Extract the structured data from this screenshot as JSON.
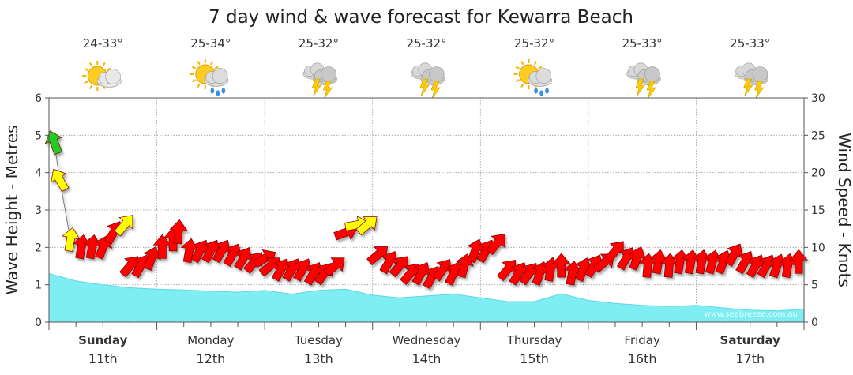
{
  "chart_data": {
    "type": "area",
    "title": "7 day wind & wave forecast for Kewarra Beach",
    "ylabel": "Wave Height - Metres",
    "y2label": "Wind Speed - Knots",
    "ylim": [
      0,
      6
    ],
    "y2lim": [
      0,
      30
    ],
    "yticks": [
      "0",
      "1",
      "2",
      "3",
      "4",
      "5",
      "6"
    ],
    "y2ticks": [
      "0",
      "5",
      "10",
      "15",
      "20",
      "25",
      "30"
    ],
    "grid": true,
    "watermark": "www.seabreeze.com.au",
    "colors": {
      "wave_fill": "#7eeef3",
      "wave_line": "#5fd6e4",
      "wind_strong": "#ff0000",
      "wind_medium": "#ffff00",
      "wind_light": "#22cc22",
      "grid": "#9a9a9a"
    },
    "days": [
      {
        "name": "Sunday",
        "date": "11th",
        "temps": "24-33°",
        "icon": "partly-cloudy-icon",
        "bold": true
      },
      {
        "name": "Monday",
        "date": "12th",
        "temps": "25-34°",
        "icon": "sun-cloud-rain-icon",
        "bold": false
      },
      {
        "name": "Tuesday",
        "date": "13th",
        "temps": "25-32°",
        "icon": "thunderstorm-icon",
        "bold": false
      },
      {
        "name": "Wednesday",
        "date": "14th",
        "temps": "25-32°",
        "icon": "thunderstorm-icon",
        "bold": false
      },
      {
        "name": "Thursday",
        "date": "15th",
        "temps": "25-32°",
        "icon": "sun-cloud-rain-icon",
        "bold": false
      },
      {
        "name": "Friday",
        "date": "16th",
        "temps": "25-33°",
        "icon": "thunderstorm-icon",
        "bold": false
      },
      {
        "name": "Saturday",
        "date": "17th",
        "temps": "25-33°",
        "icon": "thunderstorm-icon",
        "bold": true
      }
    ],
    "wave_height": {
      "x_days": [
        0,
        0.25,
        0.5,
        0.75,
        1,
        1.25,
        1.5,
        1.75,
        2,
        2.25,
        2.5,
        2.75,
        3,
        3.25,
        3.5,
        3.75,
        4,
        4.25,
        4.5,
        4.75,
        5,
        5.25,
        5.5,
        5.75,
        6,
        6.25,
        6.5,
        6.75,
        7
      ],
      "values": [
        1.3,
        1.1,
        1.0,
        0.92,
        0.88,
        0.86,
        0.83,
        0.8,
        0.85,
        0.75,
        0.85,
        0.88,
        0.72,
        0.65,
        0.7,
        0.75,
        0.65,
        0.55,
        0.55,
        0.76,
        0.58,
        0.5,
        0.45,
        0.42,
        0.45,
        0.38,
        0.32,
        0.3,
        0.35
      ]
    },
    "wind": {
      "x_days": [
        0.05,
        0.1,
        0.2,
        0.3,
        0.4,
        0.5,
        0.6,
        0.7,
        0.75,
        0.85,
        0.95,
        1.05,
        1.15,
        1.2,
        1.3,
        1.4,
        1.5,
        1.6,
        1.7,
        1.8,
        1.9,
        2.0,
        2.05,
        2.15,
        2.25,
        2.35,
        2.45,
        2.55,
        2.65,
        2.75,
        2.85,
        2.95,
        3.05,
        3.15,
        3.25,
        3.35,
        3.45,
        3.55,
        3.65,
        3.75,
        3.85,
        3.95,
        4.05,
        4.15,
        4.25,
        4.35,
        4.45,
        4.55,
        4.65,
        4.75,
        4.85,
        4.95,
        5.05,
        5.15,
        5.25,
        5.35,
        5.45,
        5.55,
        5.65,
        5.75,
        5.85,
        5.95,
        6.05,
        6.15,
        6.25,
        6.35,
        6.45,
        6.55,
        6.65,
        6.75,
        6.85,
        6.95
      ],
      "knots": [
        24,
        19,
        11,
        10,
        10,
        10,
        12,
        13,
        7.5,
        7.5,
        8.5,
        10,
        11,
        12,
        9.5,
        9.5,
        9.5,
        9.5,
        9,
        8.5,
        8,
        8.5,
        7.5,
        7,
        7,
        7,
        6.5,
        6.5,
        7.5,
        12,
        13,
        13,
        9,
        8,
        7.5,
        6.5,
        6.5,
        6,
        7,
        6.5,
        7.5,
        9.5,
        9.5,
        10.5,
        7,
        6.5,
        6.5,
        6.5,
        7,
        7.5,
        6.5,
        7,
        7.5,
        8,
        9.5,
        8.5,
        8.5,
        7.5,
        8,
        7.5,
        8,
        8,
        8,
        8,
        8,
        9,
        8,
        7.5,
        7.5,
        7.5,
        7.5,
        8
      ],
      "direction_deg": [
        200,
        210,
        170,
        170,
        170,
        160,
        150,
        140,
        140,
        150,
        160,
        180,
        180,
        175,
        170,
        150,
        150,
        150,
        150,
        150,
        140,
        120,
        130,
        150,
        150,
        150,
        150,
        145,
        130,
        110,
        100,
        130,
        130,
        150,
        140,
        140,
        150,
        150,
        145,
        155,
        165,
        160,
        150,
        140,
        140,
        150,
        145,
        160,
        170,
        180,
        170,
        160,
        150,
        130,
        140,
        150,
        160,
        175,
        170,
        175,
        170,
        170,
        170,
        165,
        160,
        150,
        150,
        150,
        150,
        160,
        170,
        180
      ]
    }
  }
}
